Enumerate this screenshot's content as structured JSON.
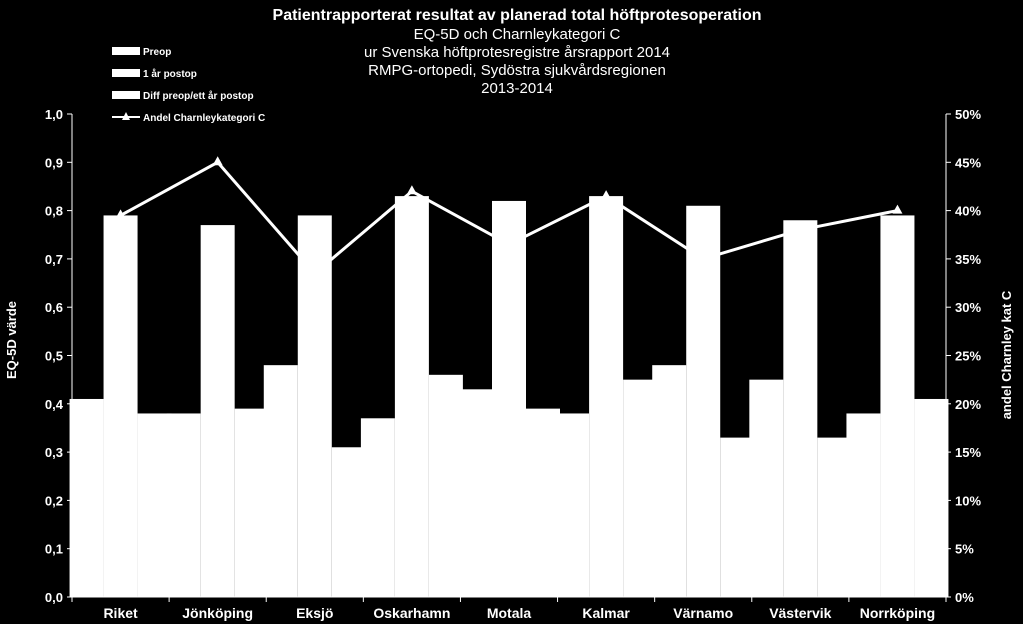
{
  "chart_data": {
    "type": "bar",
    "title": "Patientrapporterat resultat av planerad total höftprotesoperation",
    "subtitle_lines": [
      "EQ-5D och Charnleykategori C",
      "ur Svenska höftprotesregistre årsrapport 2014",
      "RMPG-ortopedi, Sydöstra sjukvårdsregionen",
      "2013-2014"
    ],
    "ylabel": "EQ-5D värde",
    "y2label": "andel Charnley kat C",
    "ylim": [
      0,
      1.0
    ],
    "y2lim": [
      0,
      50
    ],
    "yticks": [
      "0,0",
      "0,1",
      "0,2",
      "0,3",
      "0,4",
      "0,5",
      "0,6",
      "0,7",
      "0,8",
      "0,9",
      "1,0"
    ],
    "y2ticks": [
      "0%",
      "5%",
      "10%",
      "15%",
      "20%",
      "25%",
      "30%",
      "35%",
      "40%",
      "45%",
      "50%"
    ],
    "categories": [
      "Riket",
      "Jönköping",
      "Eksjö",
      "Oskarhamn",
      "Motala",
      "Kalmar",
      "Värnamo",
      "Västervik",
      "Norrköping"
    ],
    "series": [
      {
        "name": "Preop",
        "kind": "bar",
        "values": [
          0.41,
          0.38,
          0.48,
          0.37,
          0.43,
          0.38,
          0.48,
          0.45,
          0.38
        ]
      },
      {
        "name": "1 år postop",
        "kind": "bar",
        "values": [
          0.79,
          0.77,
          0.79,
          0.83,
          0.82,
          0.83,
          0.81,
          0.78,
          0.79
        ]
      },
      {
        "name": "Diff preop/ett år postop",
        "kind": "bar",
        "values": [
          0.38,
          0.39,
          0.31,
          0.46,
          0.39,
          0.45,
          0.33,
          0.33,
          0.41
        ]
      },
      {
        "name": "Andel Charnleykategori C",
        "kind": "line",
        "axis": "y2",
        "values": [
          39.5,
          45,
          33.5,
          42,
          36.5,
          41.5,
          35,
          38,
          40
        ]
      }
    ],
    "legend_position": "top-left",
    "grid": false,
    "colors": {
      "background": "#000000",
      "bars": "#ffffff",
      "line": "#ffffff"
    }
  }
}
